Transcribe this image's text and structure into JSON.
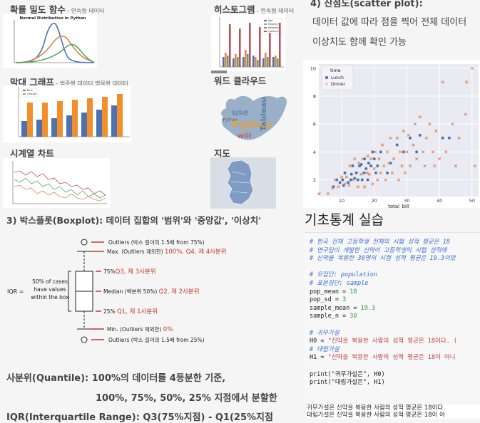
{
  "thumbs": {
    "kde": {
      "title": "확률 밀도 함수",
      "subtitle": " - 연속형 데이터",
      "chart_title": "Normal Distribution in Python"
    },
    "hist": {
      "title": "히스토그램",
      "subtitle": " - 연속형 데이터",
      "legend": [
        "Age",
        "Height(cm)",
        "Weight(kg)",
        "Lifeline(h)"
      ]
    },
    "bar": {
      "title": "막대 그래프",
      "subtitle": " - 범주형 데이터,명목형 데이터",
      "legend": [
        "Blue",
        "Orange"
      ]
    },
    "word": {
      "title": "워드 클라우드",
      "words": [
        "use",
        "Python",
        "will",
        "Tableau",
        "iPython"
      ]
    },
    "ts": {
      "title": "시계열 차트"
    },
    "map": {
      "title": "지도"
    }
  },
  "scatter_section": {
    "heading": "4) 산점도(scatter plot):",
    "line1": "데이터 값에 따라 점을 찍어 전체 데이터",
    "line2": "이상치도 함께 확인 가능"
  },
  "boxplot_section": {
    "heading": "3) 박스플롯(Boxplot): 데이터 집합의 '범위'와 '중앙값', '이상치'",
    "outlier_top": "Outliers (박스 길이의 1.5배 from 75%)",
    "max": "Max. (Outliers 제외한)",
    "max_red": "100%, Q4, 제 4사분위",
    "q3_black": "75%",
    "q3_red": "Q3, 제 3사분위",
    "iqr": "IQR =",
    "box_text": [
      "50% of cases",
      "have values",
      "within the box"
    ],
    "median": "Median (백분위 50%)",
    "median_red": "Q2, 제 2사분위",
    "q1_black": "25%",
    "q1_red": "Q1, 제 1사분위",
    "min": "Min. (Outliers 제외한)",
    "min_red": "0%",
    "outlier_bottom": "Outliers (박스 길이의 1.5배 from 25%)"
  },
  "quantile": {
    "line1": "사분위(Quantile): 100%의 데이터를 4등분한 기준,",
    "line2": "100%, 75%, 50%, 25% 지점에서 분할한",
    "line3": "IQR(Interquartile Range): Q3(75%지점) - Q1(25%지점"
  },
  "stats": {
    "heading": "기초통계 실습",
    "code": {
      "c1": "# 한국 전체 고등학생 전체의 시험 성적 평균은 18",
      "c2": "# 연구팀이 개발한 신약이 고등학생의 시험 성적에 ",
      "c3": "# 신약을 복용한 30명의 시험 성적 평균은 19.3이었",
      "c4": "# 모집단: population",
      "c5": "# 표본집단: sample",
      "v1": "pop_mean = ",
      "n1": "18",
      "v2": "pop_sd = ",
      "n2": "3",
      "v3": "sample_mean = ",
      "n3": "19.3",
      "v4": "sample_n = ",
      "n4": "30",
      "c6": "# 귀무가설",
      "h0k": "H0 = ",
      "h0s": "\"신약을 복용한 사람의 성적 평균은 18이다. (",
      "c7": "# 대립가설",
      "h1k": "H1 = ",
      "h1s": "\"신약을 복용한 사람의 성적 평균은 18이 아니",
      "p1": "print(\"귀무가설은\", H0)",
      "p2": "print(\"대립가설은\", H1)"
    },
    "output1": "귀무가설은 신약을 복용한 사람의 성적 평균은 18이다.",
    "output2": "대립가설은 신약을 복용한 사람의 성적 평균은 18이 아"
  },
  "chart_data": {
    "type": "scatter",
    "xlabel": "total_bill",
    "ylabel": "",
    "xlim": [
      3,
      52
    ],
    "ylim": [
      0.8,
      10.3
    ],
    "xticks": [
      10,
      20,
      30,
      40,
      50
    ],
    "yticks": [
      2,
      4,
      6,
      8,
      10
    ],
    "grid": true,
    "legend_title": "time",
    "legend_position": "top-left",
    "series": [
      {
        "name": "Lunch",
        "color": "#4c72b0",
        "marker": "circle",
        "points": [
          [
            7.5,
            1.5
          ],
          [
            8.5,
            2
          ],
          [
            9.5,
            1.8
          ],
          [
            10.3,
            2
          ],
          [
            10.6,
            1.6
          ],
          [
            11,
            2.5
          ],
          [
            12,
            1.8
          ],
          [
            12.8,
            2
          ],
          [
            13,
            2.4
          ],
          [
            13.4,
            3
          ],
          [
            14,
            2.1
          ],
          [
            14.5,
            2.5
          ],
          [
            15,
            2
          ],
          [
            15.5,
            3
          ],
          [
            16,
            3.1
          ],
          [
            16.3,
            2
          ],
          [
            16.9,
            2.5
          ],
          [
            17,
            3.5
          ],
          [
            17.5,
            2.8
          ],
          [
            18,
            2
          ],
          [
            18.3,
            3.2
          ],
          [
            19,
            3
          ],
          [
            19.5,
            4
          ],
          [
            20,
            3.5
          ],
          [
            20.5,
            2.5
          ],
          [
            21,
            3
          ],
          [
            22,
            4
          ],
          [
            24,
            2.5
          ],
          [
            25,
            3.2
          ],
          [
            27,
            4.5
          ],
          [
            29,
            4
          ],
          [
            31,
            5
          ],
          [
            33,
            4
          ],
          [
            34,
            5.2
          ],
          [
            41,
            5
          ],
          [
            43,
            5
          ]
        ]
      },
      {
        "name": "Dinner",
        "color": "#dd8452",
        "marker": "x",
        "points": [
          [
            3.1,
            1
          ],
          [
            5.8,
            1
          ],
          [
            7.2,
            1.4
          ],
          [
            8,
            2
          ],
          [
            9,
            1.5
          ],
          [
            10,
            2.2
          ],
          [
            11,
            1.7
          ],
          [
            11.5,
            2.2
          ],
          [
            12.3,
            1.6
          ],
          [
            12.5,
            3
          ],
          [
            13.5,
            2
          ],
          [
            14,
            3.5
          ],
          [
            15,
            1.5
          ],
          [
            15.3,
            3.2
          ],
          [
            16,
            2.4
          ],
          [
            16.5,
            3.5
          ],
          [
            17,
            1.5
          ],
          [
            17.8,
            2.5
          ],
          [
            18,
            3.7
          ],
          [
            18.5,
            2.4
          ],
          [
            19,
            3.5
          ],
          [
            19.5,
            1.7
          ],
          [
            20,
            2.8
          ],
          [
            20.3,
            4
          ],
          [
            21,
            2
          ],
          [
            21.5,
            3.5
          ],
          [
            22,
            2.5
          ],
          [
            22.5,
            4.5
          ],
          [
            23,
            3
          ],
          [
            23.5,
            2
          ],
          [
            24,
            4
          ],
          [
            24.5,
            3.2
          ],
          [
            25,
            5
          ],
          [
            25.5,
            2.5
          ],
          [
            26,
            3.5
          ],
          [
            27,
            5
          ],
          [
            27.5,
            2
          ],
          [
            28,
            4
          ],
          [
            28.5,
            3
          ],
          [
            29,
            5.5
          ],
          [
            29.5,
            2.5
          ],
          [
            30,
            4
          ],
          [
            30.5,
            5.2
          ],
          [
            31,
            3
          ],
          [
            32,
            4.5
          ],
          [
            32.5,
            6
          ],
          [
            33,
            3.5
          ],
          [
            34,
            6.5
          ],
          [
            35,
            4
          ],
          [
            35.5,
            3
          ],
          [
            36,
            5
          ],
          [
            37,
            6
          ],
          [
            38,
            4
          ],
          [
            38.5,
            3
          ],
          [
            39,
            5.5
          ],
          [
            40,
            3.5
          ],
          [
            41,
            9
          ],
          [
            42,
            4
          ],
          [
            44,
            6
          ],
          [
            45,
            3
          ],
          [
            46,
            5
          ],
          [
            48,
            6.7
          ],
          [
            50,
            10
          ],
          [
            50.8,
            3
          ],
          [
            48.3,
            9
          ]
        ]
      }
    ]
  }
}
